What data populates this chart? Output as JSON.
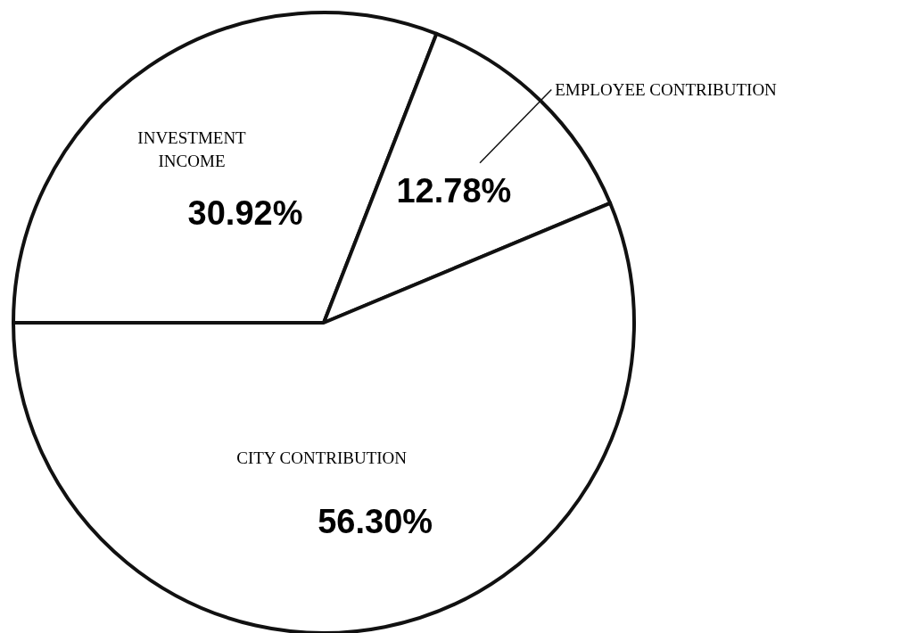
{
  "chart_data": {
    "type": "pie",
    "categories": [
      "INVESTMENT INCOME",
      "EMPLOYEE CONTRIBUTION",
      "CITY CONTRIBUTION"
    ],
    "values": [
      30.92,
      12.78,
      56.3
    ],
    "value_labels": [
      "30.92%",
      "12.78%",
      "56.30%"
    ],
    "colors": [
      "#ffffff",
      "#ffffff",
      "#ffffff"
    ]
  }
}
